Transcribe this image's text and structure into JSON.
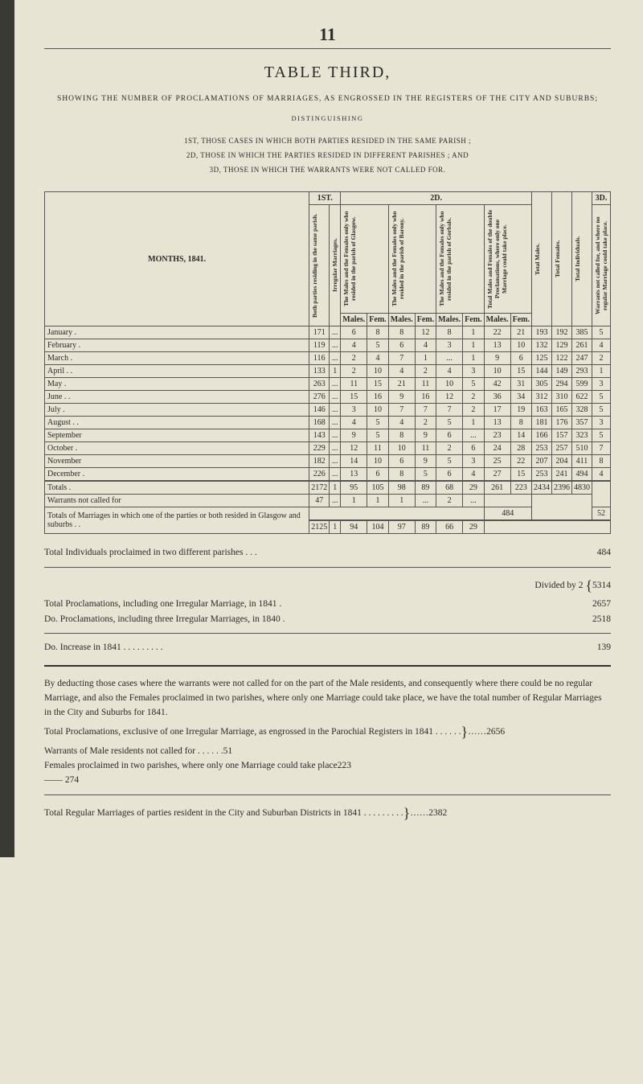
{
  "page_number": "11",
  "title": "TABLE THIRD,",
  "intro": "SHOWING THE NUMBER OF PROCLAMATIONS OF MARRIAGES, AS ENGROSSED IN THE REGISTERS OF THE CITY AND SUBURBS;",
  "distinguishing": "DISTINGUISHING",
  "clause1": "1ST, THOSE CASES IN WHICH BOTH PARTIES RESIDED IN THE SAME PARISH ;",
  "clause2": "2D, THOSE IN WHICH THE PARTIES RESIDED IN DIFFERENT PARISHES ; AND",
  "clause3": "3D, THOSE IN WHICH THE WARRANTS WERE NOT CALLED FOR.",
  "head": {
    "months": "MONTHS, 1841.",
    "g_1st": "1ST.",
    "g_2d": "2D.",
    "g_3d": "3D.",
    "c1": "Both parties residing in the same parish.",
    "c2": "Irregular Marriages.",
    "c3": "The Males and the Females only who resided in the parish of Glasgow.",
    "c4": "The Males and the Females only who resided in the parish of Barony.",
    "c5": "The Males and the Females only who resided in the parish of Gorbals.",
    "c6": "Total Males and Females of the double Proclamations, where only one Marriage could take place.",
    "c7": "Total Males.",
    "c8": "Total Females.",
    "c9": "Total Individuals.",
    "c10": "Warrants not called for, and where no regular Marriage could take place.",
    "males": "Males.",
    "fem": "Fem."
  },
  "rows": [
    {
      "m": "January .",
      "a": "171",
      "b": "...",
      "m1": "6",
      "f1": "8",
      "m2": "8",
      "f2": "12",
      "m3": "8",
      "f3": "1",
      "m4": "22",
      "f4": "21",
      "tm": "193",
      "tf": "192",
      "ti": "385",
      "w": "5"
    },
    {
      "m": "February .",
      "a": "119",
      "b": "...",
      "m1": "4",
      "f1": "5",
      "m2": "6",
      "f2": "4",
      "m3": "3",
      "f3": "1",
      "m4": "13",
      "f4": "10",
      "tm": "132",
      "tf": "129",
      "ti": "261",
      "w": "4"
    },
    {
      "m": "March .",
      "a": "116",
      "b": "...",
      "m1": "2",
      "f1": "4",
      "m2": "7",
      "f2": "1",
      "m3": "...",
      "f3": "1",
      "m4": "9",
      "f4": "6",
      "tm": "125",
      "tf": "122",
      "ti": "247",
      "w": "2"
    },
    {
      "m": "April .  .",
      "a": "133",
      "b": "1",
      "m1": "2",
      "f1": "10",
      "m2": "4",
      "f2": "2",
      "m3": "4",
      "f3": "3",
      "m4": "10",
      "f4": "15",
      "tm": "144",
      "tf": "149",
      "ti": "293",
      "w": "1"
    },
    {
      "m": "May .",
      "a": "263",
      "b": "...",
      "m1": "11",
      "f1": "15",
      "m2": "21",
      "f2": "11",
      "m3": "10",
      "f3": "5",
      "m4": "42",
      "f4": "31",
      "tm": "305",
      "tf": "294",
      "ti": "599",
      "w": "3"
    },
    {
      "m": "June .  .",
      "a": "276",
      "b": "...",
      "m1": "15",
      "f1": "16",
      "m2": "9",
      "f2": "16",
      "m3": "12",
      "f3": "2",
      "m4": "36",
      "f4": "34",
      "tm": "312",
      "tf": "310",
      "ti": "622",
      "w": "5"
    },
    {
      "m": "July .",
      "a": "146",
      "b": "...",
      "m1": "3",
      "f1": "10",
      "m2": "7",
      "f2": "7",
      "m3": "7",
      "f3": "2",
      "m4": "17",
      "f4": "19",
      "tm": "163",
      "tf": "165",
      "ti": "328",
      "w": "5"
    },
    {
      "m": "August .  .",
      "a": "168",
      "b": "...",
      "m1": "4",
      "f1": "5",
      "m2": "4",
      "f2": "2",
      "m3": "5",
      "f3": "1",
      "m4": "13",
      "f4": "8",
      "tm": "181",
      "tf": "176",
      "ti": "357",
      "w": "3"
    },
    {
      "m": "September",
      "a": "143",
      "b": "...",
      "m1": "9",
      "f1": "5",
      "m2": "8",
      "f2": "9",
      "m3": "6",
      "f3": "...",
      "m4": "23",
      "f4": "14",
      "tm": "166",
      "tf": "157",
      "ti": "323",
      "w": "5"
    },
    {
      "m": "October .",
      "a": "229",
      "b": "...",
      "m1": "12",
      "f1": "11",
      "m2": "10",
      "f2": "11",
      "m3": "2",
      "f3": "6",
      "m4": "24",
      "f4": "28",
      "tm": "253",
      "tf": "257",
      "ti": "510",
      "w": "7"
    },
    {
      "m": "November",
      "a": "182",
      "b": "...",
      "m1": "14",
      "f1": "10",
      "m2": "6",
      "f2": "9",
      "m3": "5",
      "f3": "3",
      "m4": "25",
      "f4": "22",
      "tm": "207",
      "tf": "204",
      "ti": "411",
      "w": "8"
    },
    {
      "m": "December .",
      "a": "226",
      "b": "...",
      "m1": "13",
      "f1": "6",
      "m2": "8",
      "f2": "5",
      "m3": "6",
      "f3": "4",
      "m4": "27",
      "f4": "15",
      "tm": "253",
      "tf": "241",
      "ti": "494",
      "w": "4"
    }
  ],
  "totals": {
    "label": "Totals .",
    "a": "2172",
    "b": "1",
    "m1": "95",
    "f1": "105",
    "m2": "98",
    "f2": "89",
    "m3": "68",
    "f3": "29",
    "m4": "261",
    "f4": "223",
    "tm": "2434",
    "tf": "2396",
    "ti": "4830",
    "w": ""
  },
  "warrants_row": {
    "label": "Warrants not called for",
    "a": "47",
    "b": "...",
    "m1": "1",
    "f1": "1",
    "m2": "1",
    "f2": "...",
    "m3": "2",
    "f3": "..."
  },
  "four84": "484",
  "fifty2": "52",
  "totals2_label": "Totals of Marriages in which one of the parties or both resided in Glasgow and suburbs . .",
  "totals2": {
    "a": "2125",
    "b": "1",
    "m1": "94",
    "f1": "104",
    "m2": "97",
    "f2": "89",
    "m3": "66",
    "f3": "29"
  },
  "below": {
    "l1": "Total Individuals proclaimed in two different parishes    .    .    .",
    "v1": "484",
    "l2": "Divided by 2",
    "v2": "5314",
    "l3": "Total Proclamations, including one Irregular Marriage, in 1841    .",
    "v3": "2657",
    "l4": "Do. Proclamations, including three Irregular Marriages, in 1840    .",
    "v4": "2518",
    "l5": "Do. Increase in 1841    .    .    .    .    .    .    .    .    .",
    "v5": "139"
  },
  "explain": {
    "p1": "By deducting those cases where the warrants were not called for on the part of the Male residents, and consequently where there could be no regular Marriage, and also the Females proclaimed in two parishes, where only one Marriage could take place, we have the total number of Regular Marriages in the City and Suburbs for 1841.",
    "l1": "Total Proclamations, exclusive of one Irregular Marriage, as engrossed in the Parochial Registers in 1841    .    .    .    .    .    .",
    "v1": "……2656",
    "l2": "Warrants of Male residents not called for .    .    .    .    .    .",
    "v2": "51",
    "l3": "Females proclaimed in two parishes, where only one Marriage could take place",
    "v3": "223",
    "dash": "—— 274",
    "l4": "Total Regular Marriages of parties resident in the City and Suburban Districts in 1841    .    .    .    .    .    .    .    .    .",
    "v4": "……2382"
  }
}
